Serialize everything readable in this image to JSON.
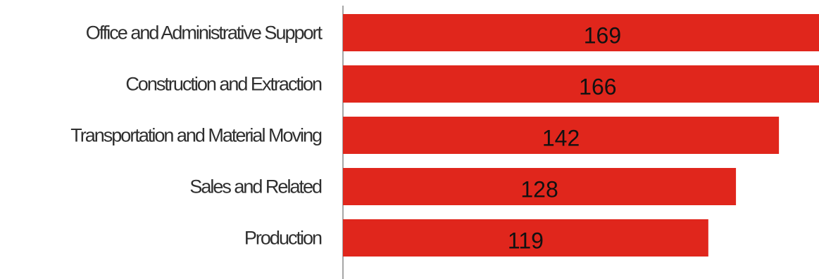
{
  "chart_data": {
    "type": "bar",
    "orientation": "horizontal",
    "categories": [
      "Office and Administrative Support",
      "Construction and Extraction",
      "Transportation and Material Moving",
      "Sales and Related",
      "Production"
    ],
    "values": [
      169,
      166,
      142,
      128,
      119
    ],
    "data_labels": [
      "169",
      "166",
      "142",
      "128",
      "119"
    ],
    "bar_color": "#e0261c",
    "axis_color": "#888888",
    "grid": false,
    "legend": "none",
    "xlim": [
      0,
      175
    ]
  }
}
